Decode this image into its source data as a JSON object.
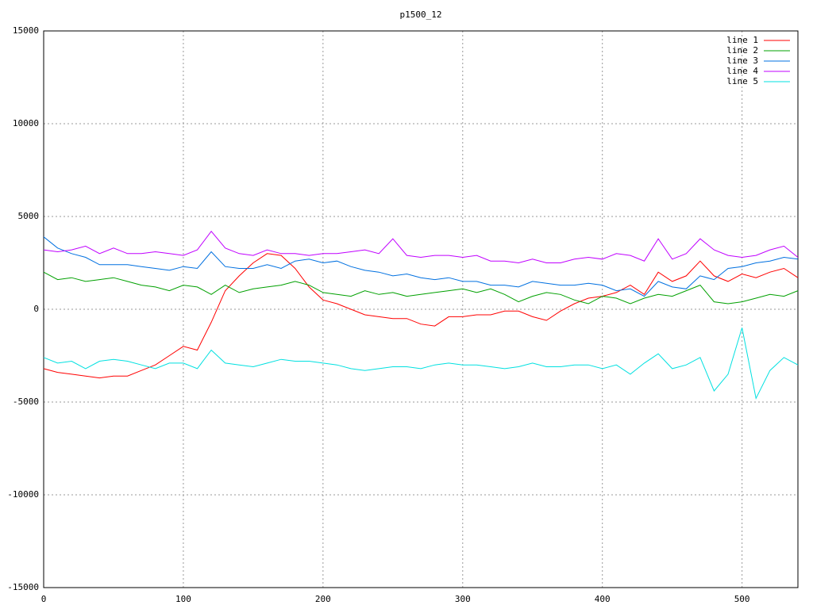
{
  "chart_data": {
    "type": "line",
    "title": "p1500_12",
    "x": [
      0,
      10,
      20,
      30,
      40,
      50,
      60,
      70,
      80,
      90,
      100,
      110,
      120,
      130,
      140,
      150,
      160,
      170,
      180,
      190,
      200,
      210,
      220,
      230,
      240,
      250,
      260,
      270,
      280,
      290,
      300,
      310,
      320,
      330,
      340,
      350,
      360,
      370,
      380,
      390,
      400,
      410,
      420,
      430,
      440,
      450,
      460,
      470,
      480,
      490,
      500,
      510,
      520,
      530,
      540
    ],
    "series": [
      {
        "name": "line 1",
        "color": "#ff0000",
        "values": [
          -3200,
          -3400,
          -3500,
          -3600,
          -3700,
          -3600,
          -3600,
          -3300,
          -3000,
          -2500,
          -2000,
          -2200,
          -700,
          1000,
          1800,
          2500,
          3000,
          2900,
          2200,
          1200,
          500,
          300,
          0,
          -300,
          -400,
          -500,
          -500,
          -800,
          -900,
          -400,
          -400,
          -300,
          -300,
          -100,
          -100,
          -400,
          -600,
          -100,
          300,
          600,
          700,
          900,
          1300,
          800,
          2000,
          1500,
          1800,
          2600,
          1800,
          1500,
          1900,
          1700,
          2000,
          2200,
          1700
        ]
      },
      {
        "name": "line 2",
        "color": "#00a000",
        "values": [
          2000,
          1600,
          1700,
          1500,
          1600,
          1700,
          1500,
          1300,
          1200,
          1000,
          1300,
          1200,
          800,
          1300,
          900,
          1100,
          1200,
          1300,
          1500,
          1300,
          900,
          800,
          700,
          1000,
          800,
          900,
          700,
          800,
          900,
          1000,
          1100,
          900,
          1100,
          800,
          400,
          700,
          900,
          800,
          500,
          300,
          700,
          600,
          300,
          600,
          800,
          700,
          1000,
          1300,
          400,
          300,
          400,
          600,
          800,
          700,
          1000
        ]
      },
      {
        "name": "line 3",
        "color": "#0070e0",
        "values": [
          3900,
          3300,
          3000,
          2800,
          2400,
          2400,
          2400,
          2300,
          2200,
          2100,
          2300,
          2200,
          3100,
          2300,
          2200,
          2200,
          2400,
          2200,
          2600,
          2700,
          2500,
          2600,
          2300,
          2100,
          2000,
          1800,
          1900,
          1700,
          1600,
          1700,
          1500,
          1500,
          1300,
          1300,
          1200,
          1500,
          1400,
          1300,
          1300,
          1400,
          1300,
          1000,
          1100,
          700,
          1500,
          1200,
          1100,
          1800,
          1600,
          2200,
          2300,
          2500,
          2600,
          2800,
          2700
        ]
      },
      {
        "name": "line 4",
        "color": "#c000ff",
        "values": [
          3200,
          3100,
          3200,
          3400,
          3000,
          3300,
          3000,
          3000,
          3100,
          3000,
          2900,
          3200,
          4200,
          3300,
          3000,
          2900,
          3200,
          3000,
          3000,
          2900,
          3000,
          3000,
          3100,
          3200,
          3000,
          3800,
          2900,
          2800,
          2900,
          2900,
          2800,
          2900,
          2600,
          2600,
          2500,
          2700,
          2500,
          2500,
          2700,
          2800,
          2700,
          3000,
          2900,
          2600,
          3800,
          2700,
          3000,
          3800,
          3200,
          2900,
          2800,
          2900,
          3200,
          3400,
          2800
        ]
      },
      {
        "name": "line 5",
        "color": "#00e0e0",
        "values": [
          -2600,
          -2900,
          -2800,
          -3200,
          -2800,
          -2700,
          -2800,
          -3000,
          -3200,
          -2900,
          -2900,
          -3200,
          -2200,
          -2900,
          -3000,
          -3100,
          -2900,
          -2700,
          -2800,
          -2800,
          -2900,
          -3000,
          -3200,
          -3300,
          -3200,
          -3100,
          -3100,
          -3200,
          -3000,
          -2900,
          -3000,
          -3000,
          -3100,
          -3200,
          -3100,
          -2900,
          -3100,
          -3100,
          -3000,
          -3000,
          -3200,
          -3000,
          -3500,
          -2900,
          -2400,
          -3200,
          -3000,
          -2600,
          -4400,
          -3500,
          -1000,
          -4800,
          -3300,
          -2600,
          -3000
        ]
      }
    ],
    "xlim": [
      0,
      540
    ],
    "xticks": [
      0,
      100,
      200,
      300,
      400,
      500
    ],
    "ylim": [
      -15000,
      15000
    ],
    "yticks": [
      -15000,
      -10000,
      -5000,
      0,
      5000,
      10000,
      15000
    ],
    "grid": true,
    "legend": "top-right"
  }
}
